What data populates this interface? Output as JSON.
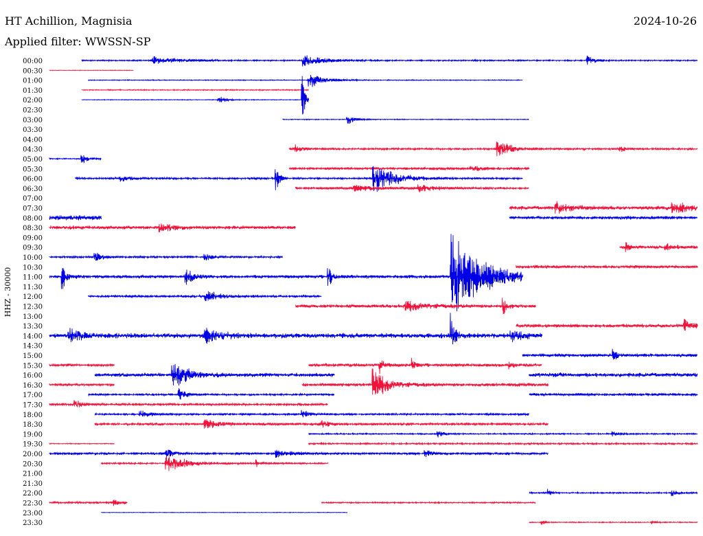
{
  "header": {
    "station": "HT Achillion, Magnisia",
    "date": "2024-10-26",
    "filter": "Applied filter: WWSSN-SP"
  },
  "chart_data": {
    "type": "line",
    "subtype": "helicorder",
    "ylabel": "HHZ - 30000",
    "row_colors": [
      "#0000e6",
      "#f0143c"
    ],
    "rows": [
      {
        "time": "00:00",
        "color_index": 0,
        "start": 0.05,
        "end": 1.0,
        "noise": 0.8,
        "events": [
          {
            "pos": 0.16,
            "amp": 6,
            "dur": 0.04
          },
          {
            "pos": 0.39,
            "amp": 10,
            "dur": 0.03
          },
          {
            "pos": 0.83,
            "amp": 8,
            "dur": 0.01
          }
        ]
      },
      {
        "time": "00:30",
        "color_index": 1,
        "start": 0.0,
        "end": 0.13,
        "noise": 0.3,
        "events": []
      },
      {
        "time": "01:00",
        "color_index": 0,
        "start": 0.06,
        "end": 0.73,
        "noise": 0.5,
        "events": [
          {
            "pos": 0.4,
            "amp": 14,
            "dur": 0.02
          }
        ]
      },
      {
        "time": "01:30",
        "color_index": 1,
        "start": 0.05,
        "end": 0.4,
        "noise": 0.6,
        "events": []
      },
      {
        "time": "02:00",
        "color_index": 0,
        "start": 0.05,
        "end": 0.4,
        "noise": 0.4,
        "events": [
          {
            "pos": 0.26,
            "amp": 8,
            "dur": 0.01
          },
          {
            "pos": 0.39,
            "amp": 40,
            "dur": 0.004
          }
        ]
      },
      {
        "time": "02:30",
        "color_index": 1,
        "start": 0.0,
        "end": 0.0,
        "noise": 0.0,
        "events": []
      },
      {
        "time": "03:00",
        "color_index": 0,
        "start": 0.36,
        "end": 0.74,
        "noise": 0.5,
        "events": [
          {
            "pos": 0.46,
            "amp": 9,
            "dur": 0.01
          }
        ]
      },
      {
        "time": "03:30",
        "color_index": 1,
        "start": 0.0,
        "end": 0.0,
        "noise": 0.0,
        "events": []
      },
      {
        "time": "04:00",
        "color_index": 0,
        "start": 0.0,
        "end": 0.0,
        "noise": 0.0,
        "events": []
      },
      {
        "time": "04:30",
        "color_index": 1,
        "start": 0.37,
        "end": 1.0,
        "noise": 1.2,
        "events": [
          {
            "pos": 0.38,
            "amp": 6,
            "dur": 0.01
          },
          {
            "pos": 0.69,
            "amp": 22,
            "dur": 0.015
          },
          {
            "pos": 0.88,
            "amp": 5,
            "dur": 0.01
          }
        ]
      },
      {
        "time": "05:00",
        "color_index": 0,
        "start": 0.0,
        "end": 0.08,
        "noise": 0.6,
        "events": [
          {
            "pos": 0.05,
            "amp": 8,
            "dur": 0.01
          }
        ]
      },
      {
        "time": "05:30",
        "color_index": 1,
        "start": 0.37,
        "end": 0.74,
        "noise": 1.5,
        "events": [
          {
            "pos": 0.65,
            "amp": 4,
            "dur": 0.02
          }
        ]
      },
      {
        "time": "06:00",
        "color_index": 0,
        "start": 0.04,
        "end": 0.73,
        "noise": 1.2,
        "events": [
          {
            "pos": 0.11,
            "amp": 7,
            "dur": 0.01
          },
          {
            "pos": 0.35,
            "amp": 20,
            "dur": 0.005
          },
          {
            "pos": 0.5,
            "amp": 25,
            "dur": 0.03
          }
        ]
      },
      {
        "time": "06:30",
        "color_index": 1,
        "start": 0.38,
        "end": 0.74,
        "noise": 1.5,
        "events": [
          {
            "pos": 0.47,
            "amp": 7,
            "dur": 0.02
          },
          {
            "pos": 0.57,
            "amp": 6,
            "dur": 0.02
          }
        ]
      },
      {
        "time": "07:00",
        "color_index": 0,
        "start": 0.0,
        "end": 0.0,
        "noise": 0.0,
        "events": []
      },
      {
        "time": "07:30",
        "color_index": 1,
        "start": 0.71,
        "end": 1.0,
        "noise": 2.2,
        "events": [
          {
            "pos": 0.78,
            "amp": 9,
            "dur": 0.02
          },
          {
            "pos": 0.96,
            "amp": 10,
            "dur": 0.03
          }
        ]
      },
      {
        "time": "08:00",
        "color_index": 0,
        "start": 0.0,
        "end": 0.08,
        "noise": 3.0,
        "events": []
      },
      {
        "time": "08:00b",
        "color_index": 0,
        "start": 0.71,
        "end": 1.0,
        "noise": 2.0,
        "events": []
      },
      {
        "time": "08:30",
        "color_index": 1,
        "start": 0.0,
        "end": 0.38,
        "noise": 2.0,
        "events": [
          {
            "pos": 0.17,
            "amp": 8,
            "dur": 0.02
          }
        ]
      },
      {
        "time": "09:00",
        "color_index": 0,
        "start": 0.0,
        "end": 0.0,
        "noise": 0.0,
        "events": []
      },
      {
        "time": "09:30",
        "color_index": 1,
        "start": 0.88,
        "end": 1.0,
        "noise": 1.8,
        "events": [
          {
            "pos": 0.89,
            "amp": 10,
            "dur": 0.005
          },
          {
            "pos": 0.95,
            "amp": 6,
            "dur": 0.01
          }
        ]
      },
      {
        "time": "10:00",
        "color_index": 0,
        "start": 0.0,
        "end": 0.36,
        "noise": 1.2,
        "events": [
          {
            "pos": 0.07,
            "amp": 9,
            "dur": 0.01
          },
          {
            "pos": 0.24,
            "amp": 6,
            "dur": 0.01
          }
        ]
      },
      {
        "time": "10:30",
        "color_index": 1,
        "start": 0.72,
        "end": 1.0,
        "noise": 1.8,
        "events": []
      },
      {
        "time": "11:00",
        "color_index": 0,
        "start": 0.0,
        "end": 0.73,
        "noise": 2.0,
        "events": [
          {
            "pos": 0.02,
            "amp": 25,
            "dur": 0.005
          },
          {
            "pos": 0.21,
            "amp": 15,
            "dur": 0.01
          },
          {
            "pos": 0.43,
            "amp": 20,
            "dur": 0.005
          },
          {
            "pos": 0.62,
            "amp": 80,
            "dur": 0.04
          }
        ]
      },
      {
        "time": "11:30",
        "color_index": 1,
        "start": 0.0,
        "end": 0.0,
        "noise": 0.0,
        "events": []
      },
      {
        "time": "12:00",
        "color_index": 0,
        "start": 0.06,
        "end": 0.42,
        "noise": 1.4,
        "events": [
          {
            "pos": 0.24,
            "amp": 10,
            "dur": 0.02
          }
        ]
      },
      {
        "time": "12:30",
        "color_index": 1,
        "start": 0.38,
        "end": 0.75,
        "noise": 2.0,
        "events": [
          {
            "pos": 0.55,
            "amp": 8,
            "dur": 0.03
          },
          {
            "pos": 0.7,
            "amp": 20,
            "dur": 0.005
          }
        ]
      },
      {
        "time": "13:00",
        "color_index": 0,
        "start": 0.0,
        "end": 0.0,
        "noise": 0.0,
        "events": []
      },
      {
        "time": "13:30",
        "color_index": 1,
        "start": 0.72,
        "end": 1.0,
        "noise": 2.0,
        "events": [
          {
            "pos": 0.98,
            "amp": 12,
            "dur": 0.01
          }
        ]
      },
      {
        "time": "14:00",
        "color_index": 0,
        "start": 0.0,
        "end": 0.76,
        "noise": 2.8,
        "events": [
          {
            "pos": 0.03,
            "amp": 10,
            "dur": 0.02
          },
          {
            "pos": 0.24,
            "amp": 12,
            "dur": 0.02
          },
          {
            "pos": 0.62,
            "amp": 40,
            "dur": 0.005
          },
          {
            "pos": 0.71,
            "amp": 10,
            "dur": 0.02
          }
        ]
      },
      {
        "time": "14:30",
        "color_index": 1,
        "start": 0.0,
        "end": 0.0,
        "noise": 0.0,
        "events": []
      },
      {
        "time": "15:00",
        "color_index": 0,
        "start": 0.73,
        "end": 1.0,
        "noise": 2.0,
        "events": [
          {
            "pos": 0.87,
            "amp": 10,
            "dur": 0.005
          }
        ]
      },
      {
        "time": "15:30",
        "color_index": 1,
        "start": 0.0,
        "end": 0.1,
        "noise": 1.6,
        "events": []
      },
      {
        "time": "15:30b",
        "color_index": 1,
        "start": 0.4,
        "end": 0.76,
        "noise": 2.0,
        "events": [
          {
            "pos": 0.51,
            "amp": 12,
            "dur": 0.005
          },
          {
            "pos": 0.56,
            "amp": 10,
            "dur": 0.005
          },
          {
            "pos": 0.71,
            "amp": 10,
            "dur": 0.005
          }
        ]
      },
      {
        "time": "16:00",
        "color_index": 0,
        "start": 0.07,
        "end": 0.44,
        "noise": 2.2,
        "events": [
          {
            "pos": 0.19,
            "amp": 25,
            "dur": 0.02
          }
        ]
      },
      {
        "time": "16:00b",
        "color_index": 0,
        "start": 0.74,
        "end": 1.0,
        "noise": 2.4,
        "events": []
      },
      {
        "time": "16:30",
        "color_index": 1,
        "start": 0.0,
        "end": 0.1,
        "noise": 1.4,
        "events": []
      },
      {
        "time": "16:30b",
        "color_index": 1,
        "start": 0.39,
        "end": 0.77,
        "noise": 2.0,
        "events": [
          {
            "pos": 0.5,
            "amp": 25,
            "dur": 0.02
          }
        ]
      },
      {
        "time": "17:00",
        "color_index": 0,
        "start": 0.06,
        "end": 0.44,
        "noise": 1.2,
        "events": [
          {
            "pos": 0.2,
            "amp": 10,
            "dur": 0.01
          }
        ]
      },
      {
        "time": "17:00b",
        "color_index": 0,
        "start": 0.74,
        "end": 1.0,
        "noise": 1.6,
        "events": []
      },
      {
        "time": "17:30",
        "color_index": 1,
        "start": 0.0,
        "end": 0.43,
        "noise": 1.4,
        "events": [
          {
            "pos": 0.04,
            "amp": 7,
            "dur": 0.01
          }
        ]
      },
      {
        "time": "18:00",
        "color_index": 0,
        "start": 0.07,
        "end": 0.74,
        "noise": 1.2,
        "events": [
          {
            "pos": 0.14,
            "amp": 8,
            "dur": 0.01
          },
          {
            "pos": 0.39,
            "amp": 7,
            "dur": 0.01
          }
        ]
      },
      {
        "time": "18:30",
        "color_index": 1,
        "start": 0.07,
        "end": 0.77,
        "noise": 1.6,
        "events": [
          {
            "pos": 0.24,
            "amp": 8,
            "dur": 0.02
          },
          {
            "pos": 0.42,
            "amp": 6,
            "dur": 0.01
          }
        ]
      },
      {
        "time": "19:00",
        "color_index": 0,
        "start": 0.4,
        "end": 1.0,
        "noise": 0.8,
        "events": [
          {
            "pos": 0.6,
            "amp": 5,
            "dur": 0.01
          },
          {
            "pos": 0.87,
            "amp": 4,
            "dur": 0.01
          }
        ]
      },
      {
        "time": "19:30",
        "color_index": 1,
        "start": 0.0,
        "end": 0.1,
        "noise": 0.5,
        "events": []
      },
      {
        "time": "19:30b",
        "color_index": 1,
        "start": 0.4,
        "end": 1.0,
        "noise": 1.0,
        "events": []
      },
      {
        "time": "20:00",
        "color_index": 0,
        "start": 0.0,
        "end": 0.77,
        "noise": 1.4,
        "events": [
          {
            "pos": 0.18,
            "amp": 8,
            "dur": 0.01
          },
          {
            "pos": 0.35,
            "amp": 7,
            "dur": 0.02
          },
          {
            "pos": 0.58,
            "amp": 6,
            "dur": 0.01
          }
        ]
      },
      {
        "time": "20:30",
        "color_index": 1,
        "start": 0.08,
        "end": 0.43,
        "noise": 1.0,
        "events": [
          {
            "pos": 0.18,
            "amp": 14,
            "dur": 0.03
          },
          {
            "pos": 0.32,
            "amp": 5,
            "dur": 0.01
          }
        ]
      },
      {
        "time": "21:00",
        "color_index": 0,
        "start": 0.0,
        "end": 0.0,
        "noise": 0.0,
        "events": []
      },
      {
        "time": "21:30",
        "color_index": 1,
        "start": 0.0,
        "end": 0.0,
        "noise": 0.0,
        "events": []
      },
      {
        "time": "22:00",
        "color_index": 0,
        "start": 0.74,
        "end": 1.0,
        "noise": 0.8,
        "events": [
          {
            "pos": 0.77,
            "amp": 5,
            "dur": 0.005
          },
          {
            "pos": 0.96,
            "amp": 5,
            "dur": 0.01
          }
        ]
      },
      {
        "time": "22:30",
        "color_index": 1,
        "start": 0.0,
        "end": 0.12,
        "noise": 1.2,
        "events": [
          {
            "pos": 0.1,
            "amp": 6,
            "dur": 0.005
          }
        ]
      },
      {
        "time": "22:30b",
        "color_index": 1,
        "start": 0.42,
        "end": 0.75,
        "noise": 0.8,
        "events": []
      },
      {
        "time": "23:00",
        "color_index": 0,
        "start": 0.08,
        "end": 0.46,
        "noise": 0.3,
        "events": []
      },
      {
        "time": "23:30",
        "color_index": 1,
        "start": 0.74,
        "end": 1.0,
        "noise": 0.6,
        "events": [
          {
            "pos": 0.76,
            "amp": 4,
            "dur": 0.005
          },
          {
            "pos": 0.93,
            "amp": 3,
            "dur": 0.005
          }
        ]
      }
    ]
  }
}
